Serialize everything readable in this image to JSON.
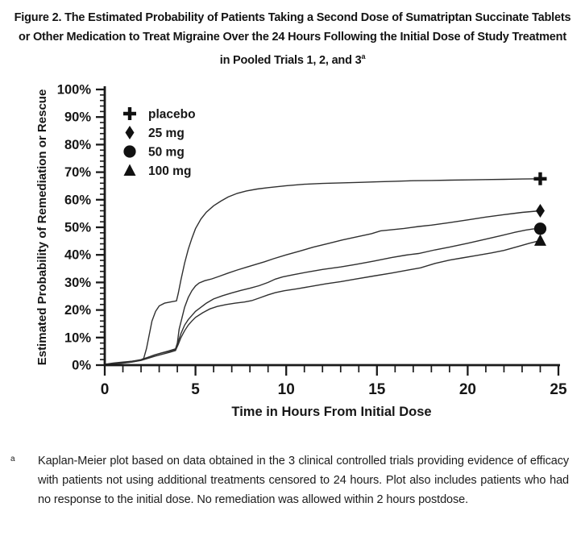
{
  "figure": {
    "title": "Figure 2. The Estimated Probability of Patients Taking a Second Dose of Sumatriptan Succinate Tablets or Other Medication to Treat Migraine Over the 24 Hours Following the Initial Dose of Study Treatment in Pooled Trials 1, 2, and 3",
    "title_footnote_marker": "a"
  },
  "footnote": {
    "marker": "a",
    "text": "Kaplan-Meier plot based on data obtained in the 3 clinical controlled trials providing evidence of efficacy with patients not using additional treatments censored to 24 hours. Plot also includes patients who had no response to the initial dose. No remediation was allowed within 2 hours postdose."
  },
  "chart_data": {
    "type": "line",
    "title": "",
    "xlabel": "Time in Hours From Initial Dose",
    "ylabel": "Estimated Probability of Remediation or Rescue",
    "xlim": [
      0,
      25
    ],
    "ylim": [
      0,
      100
    ],
    "x_tick_values": [
      0,
      5,
      10,
      15,
      20,
      25
    ],
    "x_tick_labels": [
      "0",
      "5",
      "10",
      "15",
      "20",
      "25"
    ],
    "x_minor_step": 1,
    "y_tick_values": [
      0,
      10,
      20,
      30,
      40,
      50,
      60,
      70,
      80,
      90,
      100
    ],
    "y_tick_labels": [
      "0%",
      "10%",
      "20%",
      "30%",
      "40%",
      "50%",
      "60%",
      "70%",
      "80%",
      "90%",
      "100%"
    ],
    "y_minor_step": 2,
    "grid": false,
    "legend_position": "top-left",
    "colors": {
      "line": "#2f2f2f",
      "axis": "#1a1a1a",
      "marker": "#111111",
      "text": "#161616"
    },
    "series": [
      {
        "name": "placebo",
        "marker": "plus",
        "end_value_pct": 68,
        "points": [
          [
            0,
            0.3
          ],
          [
            0.5,
            0.8
          ],
          [
            1,
            1.1
          ],
          [
            1.5,
            1.4
          ],
          [
            2,
            1.8
          ],
          [
            2.15,
            2.5
          ],
          [
            2.3,
            6
          ],
          [
            2.45,
            11
          ],
          [
            2.6,
            16
          ],
          [
            2.8,
            19.5
          ],
          [
            3,
            21.5
          ],
          [
            3.3,
            22.5
          ],
          [
            3.7,
            23
          ],
          [
            3.95,
            23.3
          ],
          [
            4.05,
            26
          ],
          [
            4.2,
            31
          ],
          [
            4.4,
            37
          ],
          [
            4.6,
            42
          ],
          [
            4.8,
            46
          ],
          [
            5,
            49.5
          ],
          [
            5.3,
            53
          ],
          [
            5.6,
            55.5
          ],
          [
            6,
            57.8
          ],
          [
            6.4,
            59.5
          ],
          [
            6.8,
            61
          ],
          [
            7.3,
            62.3
          ],
          [
            7.8,
            63.2
          ],
          [
            8.4,
            63.9
          ],
          [
            9,
            64.4
          ],
          [
            10,
            65.1
          ],
          [
            11,
            65.6
          ],
          [
            12,
            65.9
          ],
          [
            13,
            66.1
          ],
          [
            14,
            66.3
          ],
          [
            15,
            66.5
          ],
          [
            16,
            66.7
          ],
          [
            17,
            66.9
          ],
          [
            18,
            67
          ],
          [
            19,
            67.1
          ],
          [
            20,
            67.2
          ],
          [
            21,
            67.3
          ],
          [
            22,
            67.4
          ],
          [
            23,
            67.5
          ],
          [
            24,
            67.6
          ]
        ]
      },
      {
        "name": "25 mg",
        "marker": "diamond",
        "end_value_pct": 56,
        "points": [
          [
            0,
            0.2
          ],
          [
            0.5,
            0.5
          ],
          [
            1,
            0.8
          ],
          [
            1.5,
            1.2
          ],
          [
            2,
            1.8
          ],
          [
            2.3,
            2.6
          ],
          [
            2.7,
            3.6
          ],
          [
            3.1,
            4.4
          ],
          [
            3.5,
            5.1
          ],
          [
            3.9,
            5.9
          ],
          [
            4,
            8
          ],
          [
            4.1,
            13
          ],
          [
            4.25,
            17
          ],
          [
            4.4,
            21
          ],
          [
            4.6,
            24.5
          ],
          [
            4.8,
            27
          ],
          [
            5,
            28.7
          ],
          [
            5.2,
            29.8
          ],
          [
            5.5,
            30.6
          ],
          [
            5.9,
            31.3
          ],
          [
            6.3,
            32.2
          ],
          [
            6.8,
            33.4
          ],
          [
            7.3,
            34.5
          ],
          [
            7.8,
            35.5
          ],
          [
            8.3,
            36.5
          ],
          [
            8.8,
            37.5
          ],
          [
            9.3,
            38.6
          ],
          [
            10,
            40
          ],
          [
            10.7,
            41.3
          ],
          [
            11.5,
            42.8
          ],
          [
            12.3,
            44.1
          ],
          [
            13.1,
            45.4
          ],
          [
            14,
            46.7
          ],
          [
            14.7,
            47.7
          ],
          [
            15.2,
            48.7
          ],
          [
            15.8,
            49.1
          ],
          [
            16.5,
            49.6
          ],
          [
            17.3,
            50.3
          ],
          [
            18,
            50.8
          ],
          [
            19,
            51.7
          ],
          [
            20,
            52.7
          ],
          [
            21,
            53.7
          ],
          [
            22,
            54.6
          ],
          [
            23,
            55.4
          ],
          [
            24,
            56
          ]
        ]
      },
      {
        "name": "50 mg",
        "marker": "circle",
        "end_value_pct": 50,
        "points": [
          [
            0,
            0.2
          ],
          [
            0.5,
            0.5
          ],
          [
            1,
            0.9
          ],
          [
            1.5,
            1.4
          ],
          [
            2,
            2
          ],
          [
            2.4,
            2.9
          ],
          [
            2.8,
            3.8
          ],
          [
            3.2,
            4.5
          ],
          [
            3.6,
            5.1
          ],
          [
            3.9,
            5.7
          ],
          [
            4.05,
            8.5
          ],
          [
            4.2,
            11.5
          ],
          [
            4.4,
            14.5
          ],
          [
            4.6,
            16.5
          ],
          [
            4.8,
            18
          ],
          [
            5,
            19.5
          ],
          [
            5.3,
            21
          ],
          [
            5.6,
            22.5
          ],
          [
            6,
            24
          ],
          [
            6.5,
            25.2
          ],
          [
            7,
            26.2
          ],
          [
            7.5,
            27.1
          ],
          [
            8,
            27.9
          ],
          [
            8.5,
            28.8
          ],
          [
            9,
            30
          ],
          [
            9.4,
            31.2
          ],
          [
            9.8,
            32
          ],
          [
            10.4,
            32.8
          ],
          [
            11.2,
            33.8
          ],
          [
            12,
            34.7
          ],
          [
            13,
            35.6
          ],
          [
            13.8,
            36.5
          ],
          [
            14.8,
            37.7
          ],
          [
            15.8,
            39
          ],
          [
            16.6,
            39.9
          ],
          [
            17.3,
            40.5
          ],
          [
            18.2,
            41.8
          ],
          [
            19,
            42.8
          ],
          [
            20,
            44.2
          ],
          [
            21,
            45.7
          ],
          [
            21.8,
            46.9
          ],
          [
            22.6,
            48.2
          ],
          [
            23.2,
            49
          ],
          [
            23.6,
            49.4
          ],
          [
            24,
            49.5
          ]
        ]
      },
      {
        "name": "100 mg",
        "marker": "triangle",
        "end_value_pct": 45,
        "points": [
          [
            0,
            0.2
          ],
          [
            0.5,
            0.4
          ],
          [
            1,
            0.7
          ],
          [
            1.5,
            1.1
          ],
          [
            2,
            1.7
          ],
          [
            2.4,
            2.5
          ],
          [
            2.8,
            3.3
          ],
          [
            3.2,
            4
          ],
          [
            3.6,
            4.7
          ],
          [
            3.9,
            5.3
          ],
          [
            4.05,
            7.5
          ],
          [
            4.2,
            10
          ],
          [
            4.4,
            12.5
          ],
          [
            4.6,
            14.5
          ],
          [
            4.8,
            16
          ],
          [
            5,
            17.3
          ],
          [
            5.4,
            19
          ],
          [
            5.8,
            20.4
          ],
          [
            6.2,
            21.3
          ],
          [
            6.7,
            22
          ],
          [
            7.2,
            22.5
          ],
          [
            7.7,
            22.9
          ],
          [
            8.1,
            23.4
          ],
          [
            8.5,
            24.3
          ],
          [
            9,
            25.5
          ],
          [
            9.4,
            26.3
          ],
          [
            9.9,
            27
          ],
          [
            10.6,
            27.7
          ],
          [
            11.4,
            28.6
          ],
          [
            12.2,
            29.5
          ],
          [
            13,
            30.3
          ],
          [
            13.8,
            31.2
          ],
          [
            14.8,
            32.3
          ],
          [
            15.8,
            33.4
          ],
          [
            16.8,
            34.6
          ],
          [
            17.4,
            35.3
          ],
          [
            18.2,
            36.9
          ],
          [
            19,
            38.1
          ],
          [
            19.7,
            38.9
          ],
          [
            20.5,
            39.8
          ],
          [
            21.3,
            40.7
          ],
          [
            22,
            41.6
          ],
          [
            22.7,
            42.9
          ],
          [
            23.4,
            44.2
          ],
          [
            24,
            45.2
          ]
        ]
      }
    ]
  }
}
